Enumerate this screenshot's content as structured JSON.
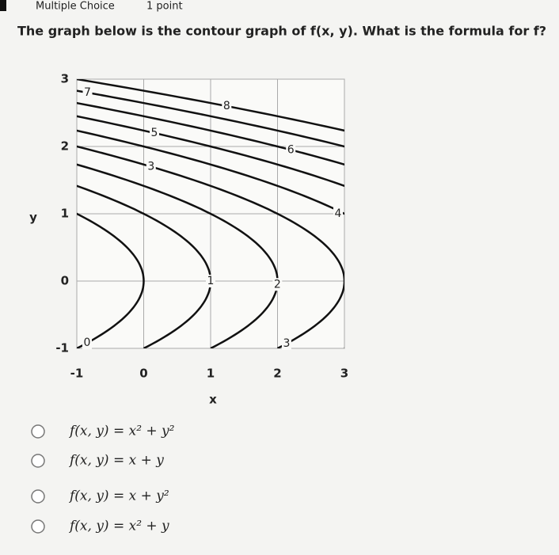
{
  "header": {
    "type_label": "Multiple Choice",
    "points": "1 point"
  },
  "question": "The graph below is the contour graph of f(x, y). What is the formula for f?",
  "chart_data": {
    "type": "contour",
    "xlabel": "x",
    "ylabel": "y",
    "xlim": [
      -1,
      3
    ],
    "ylim": [
      -1,
      3
    ],
    "xticks": [
      -1,
      0,
      1,
      2,
      3
    ],
    "yticks": [
      -1,
      0,
      1,
      2,
      3
    ],
    "grid": true,
    "color": "#111111",
    "levels": [
      0,
      1,
      2,
      3,
      4,
      5,
      6,
      7,
      8
    ],
    "label_levels": [
      7,
      8,
      5,
      6,
      3,
      4,
      1,
      2,
      3,
      0
    ]
  },
  "options": [
    "f(x, y) = x² + y²",
    "f(x, y) = x + y",
    "f(x, y) = x + y²",
    "f(x, y) = x² + y"
  ]
}
